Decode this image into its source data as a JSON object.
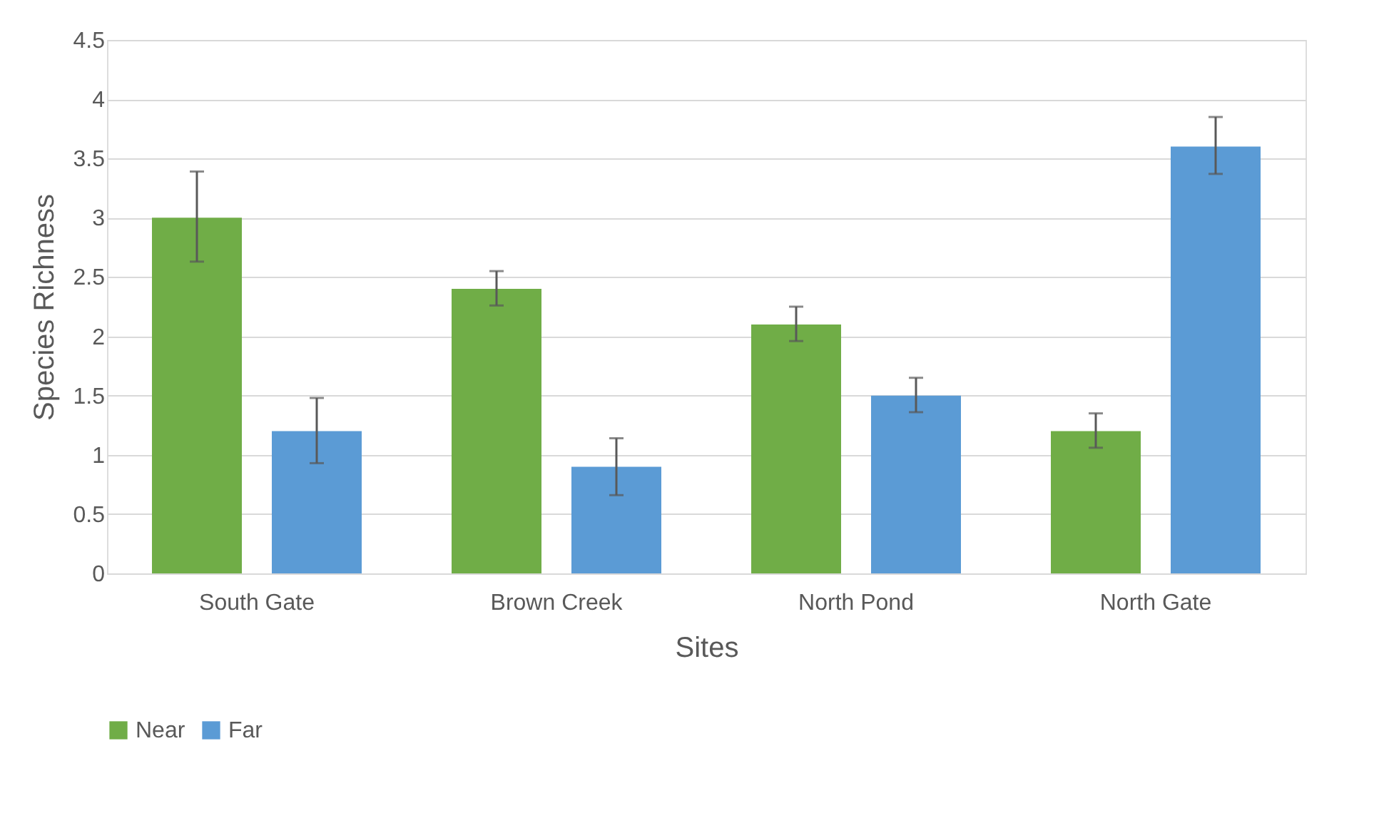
{
  "chart_data": {
    "type": "bar",
    "xlabel": "Sites",
    "ylabel": "Species Richness",
    "categories": [
      "South Gate",
      "Brown Creek",
      "North Pond",
      "North Gate"
    ],
    "series": [
      {
        "name": "Near",
        "color": "#70ad47",
        "values": [
          3.0,
          2.4,
          2.1,
          1.2
        ],
        "errors": [
          [
            2.63,
            3.39
          ],
          [
            2.26,
            2.55
          ],
          [
            1.96,
            2.25
          ],
          [
            1.06,
            1.35
          ]
        ]
      },
      {
        "name": "Far",
        "color": "#5b9bd5",
        "values": [
          1.2,
          0.9,
          1.5,
          3.6
        ],
        "errors": [
          [
            0.93,
            1.48
          ],
          [
            0.66,
            1.14
          ],
          [
            1.36,
            1.65
          ],
          [
            3.37,
            3.85
          ]
        ]
      }
    ],
    "ylim": [
      0,
      4.5
    ],
    "yticks": [
      0,
      0.5,
      1,
      1.5,
      2,
      2.5,
      3,
      3.5,
      4,
      4.5
    ],
    "grid": "y",
    "legend": "bottom"
  }
}
